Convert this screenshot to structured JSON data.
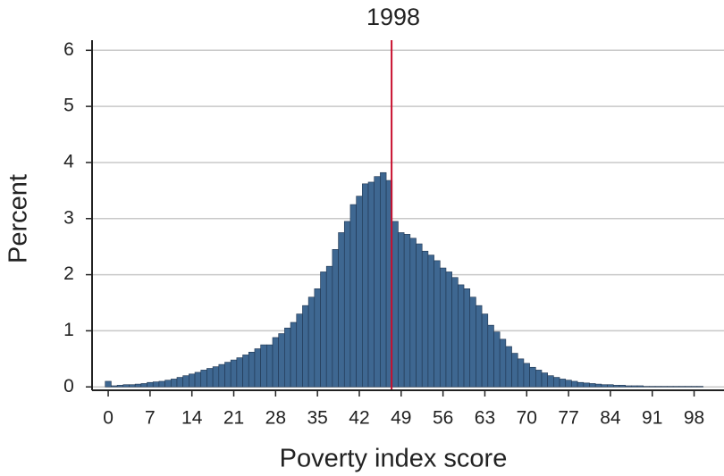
{
  "chart_data": {
    "type": "histogram",
    "title": "1998",
    "x_label": "Poverty index score",
    "y_label": "Percent",
    "bins": [
      -0.5,
      0.5,
      1.5,
      2.5,
      3.5,
      4.5,
      5.5,
      6.5,
      7.5,
      8.5,
      9.5,
      10.5,
      11.5,
      12.5,
      13.5,
      14.5,
      15.5,
      16.5,
      17.5,
      18.5,
      19.5,
      20.5,
      21.5,
      22.5,
      23.5,
      24.5,
      25.5,
      26.5,
      27.5,
      28.5,
      29.5,
      30.5,
      31.5,
      32.5,
      33.5,
      34.5,
      35.5,
      36.5,
      37.5,
      38.5,
      39.5,
      40.5,
      41.5,
      42.5,
      43.5,
      44.5,
      45.5,
      46.5,
      47.5,
      48.5,
      49.5,
      50.5,
      51.5,
      52.5,
      53.5,
      54.5,
      55.5,
      56.5,
      57.5,
      58.5,
      59.5,
      60.5,
      61.5,
      62.5,
      63.5,
      64.5,
      65.5,
      66.5,
      67.5,
      68.5,
      69.5,
      70.5,
      71.5,
      72.5,
      73.5,
      74.5,
      75.5,
      76.5,
      77.5,
      78.5,
      79.5,
      80.5,
      81.5,
      82.5,
      83.5,
      84.5,
      85.5,
      86.5,
      87.5,
      88.5,
      89.5,
      90.5,
      91.5,
      92.5,
      93.5,
      94.5,
      95.5,
      96.5,
      97.5,
      98.5,
      99.5
    ],
    "values": [
      0.1,
      0.02,
      0.03,
      0.04,
      0.04,
      0.05,
      0.06,
      0.08,
      0.09,
      0.1,
      0.12,
      0.14,
      0.17,
      0.2,
      0.23,
      0.26,
      0.3,
      0.33,
      0.36,
      0.4,
      0.44,
      0.48,
      0.52,
      0.57,
      0.62,
      0.68,
      0.75,
      0.75,
      0.88,
      0.95,
      1.05,
      1.15,
      1.3,
      1.45,
      1.6,
      1.75,
      2.05,
      2.15,
      2.45,
      2.75,
      2.95,
      3.25,
      3.4,
      3.62,
      3.65,
      3.75,
      3.82,
      3.68,
      2.95,
      2.75,
      2.72,
      2.65,
      2.55,
      2.42,
      2.35,
      2.25,
      2.12,
      2.05,
      1.95,
      1.82,
      1.75,
      1.6,
      1.45,
      1.3,
      1.1,
      0.98,
      0.85,
      0.72,
      0.6,
      0.5,
      0.42,
      0.35,
      0.3,
      0.25,
      0.2,
      0.17,
      0.14,
      0.12,
      0.1,
      0.08,
      0.07,
      0.06,
      0.05,
      0.04,
      0.04,
      0.03,
      0.03,
      0.02,
      0.02,
      0.02,
      0.01,
      0.01,
      0.01,
      0.01,
      0.01,
      0.01,
      0.01,
      0.01,
      0.01,
      0.01
    ],
    "color": "#3e6791",
    "edge_color": "#1f3550",
    "reference_line": {
      "value": 47.4,
      "color": "#c8102e"
    },
    "xlim": [
      -2.7,
      103
    ],
    "ylim": [
      -0.06,
      6.18
    ],
    "xticks": [
      0,
      7,
      14,
      21,
      28,
      35,
      42,
      49,
      56,
      63,
      70,
      77,
      84,
      91,
      98
    ],
    "yticks": [
      0,
      1,
      2,
      3,
      4,
      5,
      6
    ],
    "grid": true
  }
}
